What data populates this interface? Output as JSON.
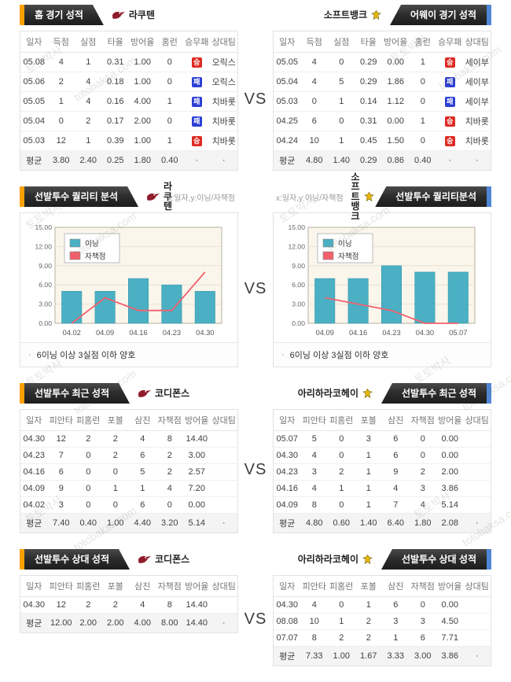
{
  "vs_label": "VS",
  "axis_note": "x:일자,y:이닝/자책점",
  "watermark": {
    "kr": "토토박사",
    "en": "totobaksa.com"
  },
  "colors": {
    "accent_orange": "#ffa200",
    "accent_blue": "#4f86d6",
    "win_badge": "#dd2b22",
    "lose_badge": "#2c3fd4",
    "bar_teal": "#4bb0c4",
    "line_red": "#f2606c",
    "chart_bg": "#faf6ec"
  },
  "sections": [
    {
      "left": {
        "banner": "홈 경기 성적",
        "team": "라쿠텐"
      },
      "right": {
        "banner": "어웨이 경기 성적",
        "team": "소프트뱅크"
      },
      "table_headers": [
        "일자",
        "득점",
        "실점",
        "타율",
        "방어율",
        "홈런",
        "승무패",
        "상대팀"
      ],
      "left_rows": [
        [
          "05.08",
          "4",
          "1",
          "0.31",
          "1.00",
          "0",
          {
            "badge": "승",
            "result": "win"
          },
          "오릭스"
        ],
        [
          "05.06",
          "2",
          "4",
          "0.18",
          "1.00",
          "0",
          {
            "badge": "패",
            "result": "lose"
          },
          "오릭스"
        ],
        [
          "05.05",
          "1",
          "4",
          "0.16",
          "4.00",
          "1",
          {
            "badge": "패",
            "result": "lose"
          },
          "치바롯"
        ],
        [
          "05.04",
          "0",
          "2",
          "0.17",
          "2.00",
          "0",
          {
            "badge": "패",
            "result": "lose"
          },
          "치바롯"
        ],
        [
          "05.03",
          "12",
          "1",
          "0.39",
          "1.00",
          "1",
          {
            "badge": "승",
            "result": "win"
          },
          "치바롯"
        ],
        [
          "평균",
          "3.80",
          "2.40",
          "0.25",
          "1.80",
          "0.40",
          "·",
          "·"
        ]
      ],
      "right_rows": [
        [
          "05.05",
          "4",
          "0",
          "0.29",
          "0.00",
          "1",
          {
            "badge": "승",
            "result": "win"
          },
          "세이부"
        ],
        [
          "05.04",
          "4",
          "5",
          "0.29",
          "1.86",
          "0",
          {
            "badge": "패",
            "result": "lose"
          },
          "세이부"
        ],
        [
          "05.03",
          "0",
          "1",
          "0.14",
          "1.12",
          "0",
          {
            "badge": "패",
            "result": "lose"
          },
          "세이부"
        ],
        [
          "04.25",
          "6",
          "0",
          "0.31",
          "0.00",
          "1",
          {
            "badge": "승",
            "result": "win"
          },
          "치바롯"
        ],
        [
          "04.24",
          "10",
          "1",
          "0.45",
          "1.50",
          "0",
          {
            "badge": "승",
            "result": "win"
          },
          "치바롯"
        ],
        [
          "평균",
          "4.80",
          "1.40",
          "0.29",
          "0.86",
          "0.40",
          "·",
          "·"
        ]
      ]
    },
    {
      "left": {
        "banner": "선발투수 퀄리티 분석",
        "team": "라쿠텐"
      },
      "right": {
        "banner": "선발투수 퀄리티분석",
        "team": "소프트뱅크"
      },
      "note_bullet": "·",
      "note": "6이닝 이상 3실점 이하 양호"
    },
    {
      "left": {
        "banner": "선발투수 최근 성적",
        "team": "코디폰스"
      },
      "right": {
        "banner": "선발투수 최근 성적",
        "team": "아리하라코헤이"
      },
      "table_headers": [
        "일자",
        "피안타",
        "피홈런",
        "포볼",
        "삼진",
        "자책점",
        "방어율",
        "상대팀"
      ],
      "left_rows": [
        [
          "04.30",
          "12",
          "2",
          "2",
          "4",
          "8",
          "14.40",
          ""
        ],
        [
          "04.23",
          "7",
          "0",
          "2",
          "6",
          "2",
          "3.00",
          ""
        ],
        [
          "04.16",
          "6",
          "0",
          "0",
          "5",
          "2",
          "2.57",
          ""
        ],
        [
          "04.09",
          "9",
          "0",
          "1",
          "1",
          "4",
          "7.20",
          ""
        ],
        [
          "04.02",
          "3",
          "0",
          "0",
          "6",
          "0",
          "0.00",
          ""
        ],
        [
          "평균",
          "7.40",
          "0.40",
          "1.00",
          "4.40",
          "3.20",
          "5.14",
          "·"
        ]
      ],
      "right_rows": [
        [
          "05.07",
          "5",
          "0",
          "3",
          "6",
          "0",
          "0.00",
          ""
        ],
        [
          "04.30",
          "4",
          "0",
          "1",
          "6",
          "0",
          "0.00",
          ""
        ],
        [
          "04.23",
          "3",
          "2",
          "1",
          "9",
          "2",
          "2.00",
          ""
        ],
        [
          "04.16",
          "4",
          "1",
          "1",
          "4",
          "3",
          "3.86",
          ""
        ],
        [
          "04.09",
          "8",
          "0",
          "1",
          "7",
          "4",
          "5.14",
          ""
        ],
        [
          "평균",
          "4.80",
          "0.60",
          "1.40",
          "6.40",
          "1.80",
          "2.08",
          "·"
        ]
      ]
    },
    {
      "left": {
        "banner": "선발투수 상대 성적",
        "team": "코디폰스"
      },
      "right": {
        "banner": "선발투수 상대 성적",
        "team": "아리하라코헤이"
      },
      "table_headers": [
        "일자",
        "피안타",
        "피홈런",
        "포볼",
        "삼진",
        "자책점",
        "방어율",
        "상대팀"
      ],
      "left_rows": [
        [
          "04.30",
          "12",
          "2",
          "2",
          "4",
          "8",
          "14.40",
          ""
        ],
        [
          "평균",
          "12.00",
          "2.00",
          "2.00",
          "4.00",
          "8.00",
          "14.40",
          "·"
        ]
      ],
      "right_rows": [
        [
          "04.30",
          "4",
          "0",
          "1",
          "6",
          "0",
          "0.00",
          ""
        ],
        [
          "08.08",
          "10",
          "1",
          "2",
          "3",
          "3",
          "4.50",
          ""
        ],
        [
          "07.07",
          "8",
          "2",
          "2",
          "1",
          "6",
          "7.71",
          ""
        ],
        [
          "평균",
          "7.33",
          "1.00",
          "1.67",
          "3.33",
          "3.00",
          "3.86",
          "·"
        ]
      ]
    }
  ],
  "chart_data": [
    {
      "type": "bar",
      "title": "선발투수 퀄리티 분석 - 라쿠텐",
      "xlabel": "일자",
      "ylabel": "이닝/자책점",
      "categories": [
        "04.02",
        "04.09",
        "04.16",
        "04.23",
        "04.30"
      ],
      "series": [
        {
          "name": "이닝",
          "type": "bar",
          "color": "#4bb0c4",
          "values": [
            5,
            5,
            7,
            6,
            5
          ]
        },
        {
          "name": "자책점",
          "type": "line",
          "color": "#f2606c",
          "values": [
            0,
            4,
            2,
            2,
            8
          ]
        }
      ],
      "ylim": [
        0,
        15
      ],
      "yticks": [
        0,
        3,
        6,
        9,
        12,
        15
      ],
      "grid": true,
      "legend_position": "top-left"
    },
    {
      "type": "bar",
      "title": "선발투수 퀄리티분석 - 소프트뱅크",
      "xlabel": "일자",
      "ylabel": "이닝/자책점",
      "categories": [
        "04.09",
        "04.16",
        "04.23",
        "04.30",
        "05.07"
      ],
      "series": [
        {
          "name": "이닝",
          "type": "bar",
          "color": "#4bb0c4",
          "values": [
            7,
            7,
            9,
            8,
            8
          ]
        },
        {
          "name": "자책점",
          "type": "line",
          "color": "#f2606c",
          "values": [
            4,
            3,
            2,
            0,
            0
          ]
        }
      ],
      "ylim": [
        0,
        15
      ],
      "yticks": [
        0,
        3,
        6,
        9,
        12,
        15
      ],
      "grid": true,
      "legend_position": "top-left"
    }
  ]
}
